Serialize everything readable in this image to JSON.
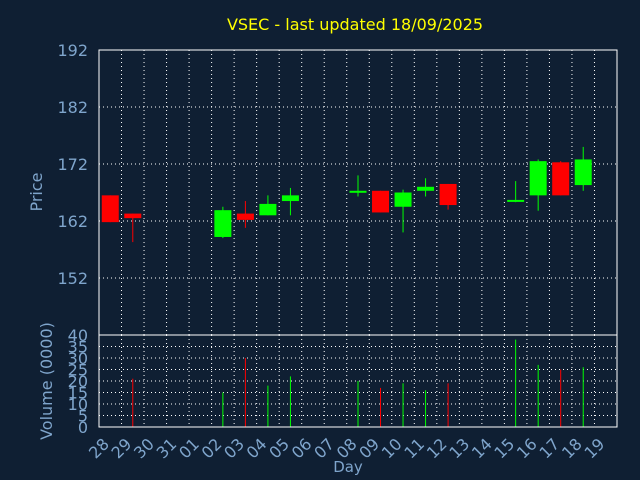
{
  "chart_data": {
    "type": "candlestick",
    "title": "VSEC - last updated 18/09/2025",
    "xlabel": "Day",
    "colors": {
      "background": "#0f1f33",
      "frame": "#ffffff",
      "grid": "#ffffff",
      "axis_text": "#7fa5cc",
      "title": "#ffff00",
      "up": "#00ff00",
      "down": "#ff0000"
    },
    "x_tick_labels": [
      "28",
      "29",
      "30",
      "31",
      "01",
      "02",
      "03",
      "04",
      "05",
      "06",
      "07",
      "08",
      "09",
      "10",
      "11",
      "12",
      "13",
      "14",
      "15",
      "16",
      "17",
      "18",
      "19"
    ],
    "price_panel": {
      "ylabel": "Price",
      "ylim": [
        142,
        192
      ],
      "yticks": [
        192,
        182,
        172,
        162,
        152
      ],
      "candles": [
        {
          "x": "28",
          "open": 166.5,
          "high": 166.5,
          "low": 161.8,
          "close": 161.8
        },
        {
          "x": "29",
          "open": 163.3,
          "high": 163.3,
          "low": 158.3,
          "close": 162.5
        },
        {
          "x": "02",
          "open": 159.2,
          "high": 164.5,
          "low": 159.0,
          "close": 163.9
        },
        {
          "x": "03",
          "open": 163.3,
          "high": 165.5,
          "low": 160.8,
          "close": 162.2
        },
        {
          "x": "04",
          "open": 163.0,
          "high": 166.5,
          "low": 163.0,
          "close": 165.0
        },
        {
          "x": "05",
          "open": 165.5,
          "high": 167.8,
          "low": 163.0,
          "close": 166.5
        },
        {
          "x": "08",
          "open": 167.0,
          "high": 170.0,
          "low": 166.3,
          "close": 167.3
        },
        {
          "x": "09",
          "open": 167.3,
          "high": 167.3,
          "low": 163.5,
          "close": 163.5
        },
        {
          "x": "10",
          "open": 164.5,
          "high": 167.5,
          "low": 160.0,
          "close": 167.0
        },
        {
          "x": "11",
          "open": 167.3,
          "high": 169.5,
          "low": 166.3,
          "close": 168.0
        },
        {
          "x": "12",
          "open": 168.5,
          "high": 168.5,
          "low": 164.0,
          "close": 164.8
        },
        {
          "x": "15",
          "open": 165.5,
          "high": 169.0,
          "low": 165.3,
          "close": 165.7
        },
        {
          "x": "16",
          "open": 166.5,
          "high": 172.8,
          "low": 163.8,
          "close": 172.5
        },
        {
          "x": "17",
          "open": 172.3,
          "high": 172.5,
          "low": 166.5,
          "close": 166.5
        },
        {
          "x": "18",
          "open": 168.3,
          "high": 175.0,
          "low": 167.3,
          "close": 172.8
        }
      ]
    },
    "volume_panel": {
      "ylabel": "Volume (0000)",
      "ylim": [
        0,
        40
      ],
      "yticks": [
        40,
        35,
        30,
        25,
        20,
        15,
        10,
        5,
        0
      ],
      "bars": [
        {
          "x": "29",
          "value": 21,
          "direction": "down"
        },
        {
          "x": "02",
          "value": 15,
          "direction": "up"
        },
        {
          "x": "03",
          "value": 30,
          "direction": "down"
        },
        {
          "x": "04",
          "value": 18,
          "direction": "up"
        },
        {
          "x": "05",
          "value": 22,
          "direction": "up"
        },
        {
          "x": "08",
          "value": 20,
          "direction": "up"
        },
        {
          "x": "09",
          "value": 17,
          "direction": "down"
        },
        {
          "x": "10",
          "value": 19,
          "direction": "up"
        },
        {
          "x": "11",
          "value": 16,
          "direction": "up"
        },
        {
          "x": "12",
          "value": 19,
          "direction": "down"
        },
        {
          "x": "15",
          "value": 38,
          "direction": "up"
        },
        {
          "x": "16",
          "value": 27,
          "direction": "up"
        },
        {
          "x": "17",
          "value": 25,
          "direction": "down"
        },
        {
          "x": "18",
          "value": 26,
          "direction": "up"
        }
      ]
    }
  }
}
